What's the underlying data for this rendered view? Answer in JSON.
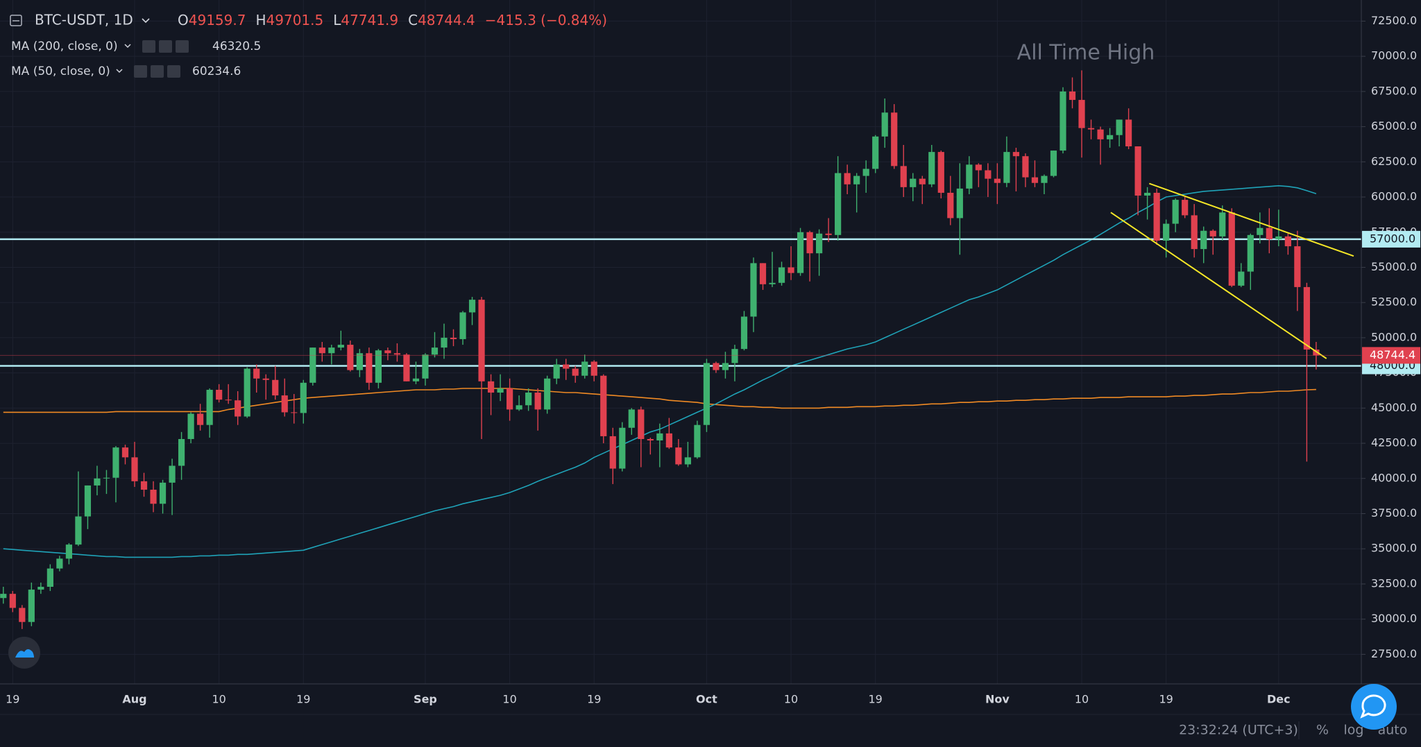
{
  "header": {
    "symbol": "BTC-USDT, 1D",
    "ohlc_labels": [
      "O",
      "H",
      "L",
      "C"
    ],
    "change": "−415.3 (−0.84%)",
    "annotation": "All Time High",
    "time": "23:32:24 (UTC+3)",
    "buttons": [
      "%",
      "log",
      "auto"
    ]
  },
  "chart_data": {
    "type": "candlestick",
    "up_color": "#3fb16f",
    "down_color": "#e0414f",
    "ylim": [
      25400,
      74000
    ],
    "yticks": [
      {
        "value": 27500,
        "label": "27500.0"
      },
      {
        "value": 30000,
        "label": "30000.0"
      },
      {
        "value": 32500,
        "label": "32500.0"
      },
      {
        "value": 35000,
        "label": "35000.0"
      },
      {
        "value": 37500,
        "label": "37500.0"
      },
      {
        "value": 40000,
        "label": "40000.0"
      },
      {
        "value": 42500,
        "label": "42500.0"
      },
      {
        "value": 45000,
        "label": "45000.0"
      },
      {
        "value": 47500,
        "label": "47500.0"
      },
      {
        "value": 50000,
        "label": "50000.0"
      },
      {
        "value": 52500,
        "label": "52500.0"
      },
      {
        "value": 55000,
        "label": "55000.0"
      },
      {
        "value": 57500,
        "label": "57500.0"
      },
      {
        "value": 60000,
        "label": "60000.0"
      },
      {
        "value": 62500,
        "label": "62500.0"
      },
      {
        "value": 65000,
        "label": "65000.0"
      },
      {
        "value": 67500,
        "label": "67500.0"
      },
      {
        "value": 70000,
        "label": "70000.0"
      },
      {
        "value": 72500,
        "label": "72500.0"
      }
    ],
    "grid": true,
    "categories": [
      null,
      "19",
      null,
      null,
      null,
      null,
      null,
      null,
      null,
      null,
      null,
      null,
      null,
      null,
      "Aug",
      null,
      null,
      null,
      null,
      null,
      null,
      null,
      null,
      "10",
      null,
      null,
      null,
      null,
      null,
      null,
      null,
      null,
      "19",
      null,
      null,
      null,
      null,
      null,
      null,
      null,
      null,
      null,
      null,
      null,
      null,
      "Sep",
      null,
      null,
      null,
      null,
      null,
      null,
      null,
      null,
      "10",
      null,
      null,
      null,
      null,
      null,
      null,
      null,
      null,
      "19",
      null,
      null,
      null,
      null,
      null,
      null,
      null,
      null,
      null,
      null,
      null,
      "Oct",
      null,
      null,
      null,
      null,
      null,
      null,
      null,
      null,
      "10",
      null,
      null,
      null,
      null,
      null,
      null,
      null,
      null,
      "19",
      null,
      null,
      null,
      null,
      null,
      null,
      null,
      null,
      null,
      null,
      null,
      null,
      "Nov",
      null,
      null,
      null,
      null,
      null,
      null,
      null,
      null,
      "10",
      null,
      null,
      null,
      null,
      null,
      null,
      null,
      null,
      "19",
      null,
      null,
      null,
      null,
      null,
      null,
      null,
      null,
      null,
      null,
      null,
      "Dec",
      null,
      null,
      null,
      null
    ],
    "ohlc": [
      [
        31500,
        32300,
        31100,
        31800
      ],
      [
        31800,
        32000,
        30500,
        30800
      ],
      [
        30800,
        31000,
        29300,
        29800
      ],
      [
        29800,
        32600,
        29500,
        32100
      ],
      [
        32100,
        32600,
        31800,
        32300
      ],
      [
        32300,
        33900,
        32000,
        33600
      ],
      [
        33600,
        34500,
        33400,
        34300
      ],
      [
        34300,
        35400,
        33900,
        35300
      ],
      [
        35300,
        40500,
        35200,
        37300
      ],
      [
        37300,
        39500,
        36400,
        39500
      ],
      [
        39500,
        40900,
        38800,
        40000
      ],
      [
        40000,
        40600,
        38900,
        40050
      ],
      [
        40050,
        42300,
        38300,
        42200
      ],
      [
        42200,
        42400,
        41000,
        41500
      ],
      [
        41500,
        42600,
        39400,
        39800
      ],
      [
        39800,
        40400,
        38700,
        39200
      ],
      [
        39200,
        39800,
        37600,
        38200
      ],
      [
        38200,
        39900,
        37500,
        39700
      ],
      [
        39700,
        41400,
        37400,
        40900
      ],
      [
        40900,
        43300,
        39900,
        42800
      ],
      [
        42800,
        44700,
        42500,
        44600
      ],
      [
        44600,
        45300,
        43400,
        43800
      ],
      [
        43800,
        46400,
        42900,
        46300
      ],
      [
        46300,
        46700,
        45400,
        45600
      ],
      [
        45600,
        46700,
        45300,
        45550
      ],
      [
        45550,
        46200,
        43800,
        44400
      ],
      [
        44400,
        47900,
        44300,
        47800
      ],
      [
        47800,
        48100,
        46100,
        47100
      ],
      [
        47100,
        47400,
        45600,
        47000
      ],
      [
        47000,
        48000,
        45600,
        45900
      ],
      [
        45900,
        47100,
        44400,
        44700
      ],
      [
        44700,
        46000,
        43900,
        44650
      ],
      [
        44650,
        47000,
        43900,
        46800
      ],
      [
        46800,
        49300,
        46600,
        49300
      ],
      [
        49300,
        49700,
        48300,
        48900
      ],
      [
        48900,
        49500,
        48100,
        49300
      ],
      [
        49300,
        50500,
        49100,
        49500
      ],
      [
        49500,
        49800,
        47600,
        47700
      ],
      [
        47700,
        49200,
        47200,
        48900
      ],
      [
        48900,
        49300,
        46300,
        46800
      ],
      [
        46800,
        49200,
        46400,
        49100
      ],
      [
        49100,
        49300,
        48400,
        48900
      ],
      [
        48900,
        49600,
        48300,
        48800
      ],
      [
        48800,
        48900,
        46900,
        46900
      ],
      [
        46900,
        48300,
        46700,
        47100
      ],
      [
        47100,
        48900,
        46600,
        48800
      ],
      [
        48800,
        50400,
        48600,
        49300
      ],
      [
        49300,
        51000,
        48500,
        50000
      ],
      [
        50000,
        50600,
        49400,
        49900
      ],
      [
        49900,
        51900,
        49500,
        51800
      ],
      [
        51800,
        52900,
        50900,
        52700
      ],
      [
        52700,
        52900,
        42800,
        46900
      ],
      [
        46900,
        47400,
        44500,
        46100
      ],
      [
        46100,
        47400,
        45500,
        46400
      ],
      [
        46400,
        47100,
        44100,
        44900
      ],
      [
        44900,
        45900,
        44800,
        45200
      ],
      [
        45200,
        46400,
        44800,
        46100
      ],
      [
        46100,
        46400,
        43400,
        44900
      ],
      [
        44900,
        47300,
        44600,
        47100
      ],
      [
        47100,
        48500,
        46700,
        48100
      ],
      [
        48100,
        48500,
        47000,
        47800
      ],
      [
        47800,
        48000,
        46800,
        47300
      ],
      [
        47300,
        48800,
        47100,
        48300
      ],
      [
        48300,
        48400,
        46900,
        47300
      ],
      [
        47300,
        47400,
        42500,
        43000
      ],
      [
        43000,
        43600,
        39600,
        40700
      ],
      [
        40700,
        44000,
        40500,
        43600
      ],
      [
        43600,
        45000,
        43100,
        44900
      ],
      [
        44900,
        45100,
        40800,
        42800
      ],
      [
        42800,
        42900,
        41700,
        42700
      ],
      [
        42700,
        43900,
        40800,
        43200
      ],
      [
        43200,
        44300,
        42100,
        42200
      ],
      [
        42200,
        42800,
        40900,
        41000
      ],
      [
        41000,
        42600,
        40800,
        41500
      ],
      [
        41500,
        44100,
        41400,
        43800
      ],
      [
        43800,
        48500,
        43300,
        48200
      ],
      [
        48200,
        48300,
        47500,
        47700
      ],
      [
        47700,
        49000,
        47100,
        48200
      ],
      [
        48200,
        49500,
        46900,
        49200
      ],
      [
        49200,
        51900,
        49100,
        51500
      ],
      [
        51500,
        55700,
        50400,
        55300
      ],
      [
        55300,
        55300,
        53400,
        53800
      ],
      [
        53800,
        56100,
        53600,
        53900
      ],
      [
        53900,
        55400,
        53700,
        55000
      ],
      [
        55000,
        56500,
        54100,
        54600
      ],
      [
        54600,
        57800,
        54400,
        57500
      ],
      [
        57500,
        57600,
        54000,
        56000
      ],
      [
        56000,
        57700,
        54400,
        57400
      ],
      [
        57400,
        58500,
        56800,
        57300
      ],
      [
        57300,
        62900,
        56900,
        61700
      ],
      [
        61700,
        62300,
        60200,
        60900
      ],
      [
        60900,
        61700,
        58900,
        61500
      ],
      [
        61500,
        62600,
        60300,
        62000
      ],
      [
        62000,
        64400,
        61700,
        64300
      ],
      [
        64300,
        67000,
        63500,
        66000
      ],
      [
        66000,
        66600,
        62000,
        62200
      ],
      [
        62200,
        63700,
        60000,
        60700
      ],
      [
        60700,
        61700,
        59700,
        61300
      ],
      [
        61300,
        61500,
        59500,
        60900
      ],
      [
        60900,
        63700,
        60700,
        63200
      ],
      [
        63200,
        63300,
        59900,
        60300
      ],
      [
        60300,
        61500,
        58000,
        58500
      ],
      [
        58500,
        62400,
        55900,
        60600
      ],
      [
        60600,
        62900,
        60200,
        62300
      ],
      [
        62300,
        62400,
        60700,
        61900
      ],
      [
        61900,
        62400,
        60000,
        61300
      ],
      [
        61300,
        62400,
        59500,
        61000
      ],
      [
        61000,
        64300,
        60700,
        63200
      ],
      [
        63200,
        63500,
        60400,
        62900
      ],
      [
        62900,
        63100,
        60700,
        61400
      ],
      [
        61400,
        62600,
        60700,
        61000
      ],
      [
        61000,
        61600,
        60200,
        61500
      ],
      [
        61500,
        63300,
        61400,
        63300
      ],
      [
        63300,
        67800,
        63100,
        67500
      ],
      [
        67500,
        68500,
        66300,
        66900
      ],
      [
        66900,
        69000,
        62800,
        64900
      ],
      [
        64900,
        65500,
        64100,
        64800
      ],
      [
        64800,
        65000,
        62300,
        64100
      ],
      [
        64100,
        64900,
        63500,
        64400
      ],
      [
        64400,
        65500,
        63600,
        65500
      ],
      [
        65500,
        66300,
        63400,
        63600
      ],
      [
        63600,
        63600,
        58700,
        60100
      ],
      [
        60100,
        60700,
        58400,
        60300
      ],
      [
        60300,
        60600,
        56600,
        56900
      ],
      [
        56900,
        58400,
        55700,
        58100
      ],
      [
        58100,
        59900,
        57500,
        59800
      ],
      [
        59800,
        60000,
        58500,
        58700
      ],
      [
        58700,
        59500,
        55700,
        56300
      ],
      [
        56300,
        57900,
        55300,
        57600
      ],
      [
        57600,
        57700,
        55900,
        57200
      ],
      [
        57200,
        59400,
        56900,
        58900
      ],
      [
        58900,
        59200,
        53600,
        53700
      ],
      [
        53700,
        55300,
        53600,
        54700
      ],
      [
        54700,
        57400,
        53400,
        57300
      ],
      [
        57300,
        58900,
        56700,
        57800
      ],
      [
        57800,
        59200,
        56000,
        57000
      ],
      [
        57000,
        59100,
        56500,
        57200
      ],
      [
        57200,
        57400,
        55900,
        56500
      ],
      [
        56500,
        57600,
        51900,
        53600
      ],
      [
        53600,
        53900,
        41200,
        49159.7
      ],
      [
        49159.7,
        49701.5,
        47741.9,
        48744.4
      ]
    ],
    "series": [
      {
        "name": "MA (200, close, 0)",
        "color": "#f08a24",
        "values": [
          44700,
          44700,
          44700,
          44700,
          44700,
          44700,
          44700,
          44700,
          44700,
          44700,
          44700,
          44700,
          44750,
          44750,
          44750,
          44750,
          44750,
          44750,
          44750,
          44750,
          44750,
          44750,
          44750,
          44750,
          44900,
          45000,
          45100,
          45200,
          45300,
          45400,
          45500,
          45600,
          45700,
          45750,
          45800,
          45850,
          45900,
          45950,
          46000,
          46050,
          46100,
          46150,
          46200,
          46250,
          46300,
          46300,
          46300,
          46350,
          46350,
          46400,
          46400,
          46400,
          46400,
          46400,
          46400,
          46350,
          46300,
          46250,
          46200,
          46150,
          46100,
          46100,
          46050,
          46000,
          45950,
          45900,
          45850,
          45800,
          45750,
          45700,
          45650,
          45550,
          45500,
          45450,
          45400,
          45300,
          45250,
          45200,
          45150,
          45100,
          45100,
          45050,
          45050,
          45000,
          45000,
          45000,
          45000,
          45000,
          45050,
          45050,
          45050,
          45100,
          45100,
          45100,
          45150,
          45150,
          45200,
          45200,
          45250,
          45300,
          45300,
          45350,
          45400,
          45400,
          45450,
          45450,
          45500,
          45500,
          45550,
          45550,
          45600,
          45600,
          45650,
          45650,
          45700,
          45700,
          45700,
          45750,
          45750,
          45750,
          45800,
          45800,
          45800,
          45800,
          45800,
          45850,
          45850,
          45900,
          45900,
          45950,
          46000,
          46000,
          46050,
          46100,
          46100,
          46150,
          46200,
          46200,
          46250,
          46300,
          46320.5
        ]
      },
      {
        "name": "MA (50, close, 0)",
        "color": "#1fa3b8",
        "values": [
          35000,
          34950,
          34900,
          34850,
          34800,
          34750,
          34700,
          34650,
          34600,
          34550,
          34500,
          34450,
          34450,
          34400,
          34400,
          34400,
          34400,
          34400,
          34400,
          34450,
          34450,
          34500,
          34500,
          34550,
          34550,
          34600,
          34600,
          34650,
          34700,
          34750,
          34800,
          34850,
          34900,
          35100,
          35300,
          35500,
          35700,
          35900,
          36100,
          36300,
          36500,
          36700,
          36900,
          37100,
          37300,
          37500,
          37700,
          37850,
          38000,
          38200,
          38350,
          38500,
          38650,
          38800,
          39000,
          39250,
          39500,
          39800,
          40050,
          40300,
          40550,
          40800,
          41100,
          41500,
          41800,
          42100,
          42400,
          42700,
          43000,
          43300,
          43500,
          43800,
          44100,
          44400,
          44700,
          45000,
          45300,
          45650,
          46000,
          46300,
          46650,
          47000,
          47300,
          47650,
          48000,
          48200,
          48400,
          48600,
          48800,
          49000,
          49200,
          49350,
          49500,
          49700,
          50000,
          50300,
          50600,
          50900,
          51200,
          51500,
          51800,
          52100,
          52400,
          52700,
          52900,
          53150,
          53400,
          53750,
          54100,
          54450,
          54800,
          55150,
          55500,
          55900,
          56250,
          56600,
          56950,
          57350,
          57750,
          58150,
          58500,
          58900,
          59250,
          59650,
          60000,
          60100,
          60200,
          60300,
          60400,
          60450,
          60500,
          60550,
          60600,
          60650,
          60700,
          60750,
          60800,
          60750,
          60650,
          60450,
          60234.6
        ]
      }
    ],
    "hlines": [
      {
        "value": 57000,
        "label": "57000.0"
      },
      {
        "value": 48000,
        "label": "48000.0"
      }
    ],
    "hline_color": "#b2ebf2",
    "trendlines": [
      {
        "x": [
          122.2,
          144
        ],
        "y": [
          60960,
          55800
        ]
      },
      {
        "x": [
          118.1,
          141.1
        ],
        "y": [
          58900,
          48520
        ]
      }
    ],
    "trendline_color": "#f5e727"
  }
}
